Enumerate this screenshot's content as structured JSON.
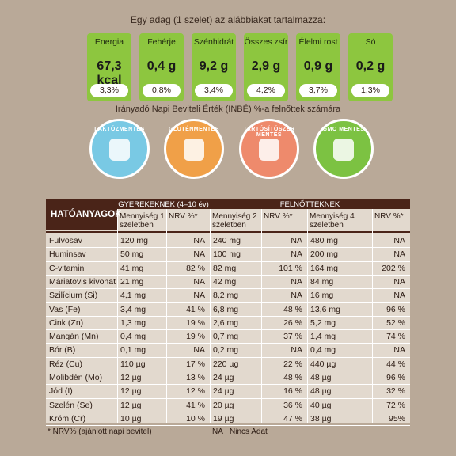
{
  "intro": "Egy adag (1 szelet) az alábbiakat tartalmazza:",
  "nutrition": [
    {
      "label": "Energia",
      "value": "67,3 kcal",
      "percent": "3,3%"
    },
    {
      "label": "Fehérje",
      "value": "0,4 g",
      "percent": "0,8%"
    },
    {
      "label": "Szénhidrát",
      "value": "9,2 g",
      "percent": "3,4%"
    },
    {
      "label": "Összes zsír",
      "value": "2,9 g",
      "percent": "4,2%"
    },
    {
      "label": "Élelmi rost",
      "value": "0,9 g",
      "percent": "3,7%"
    },
    {
      "label": "Só",
      "value": "0,2 g",
      "percent": "1,3%"
    }
  ],
  "note": "Irányadó Napi Beviteli Érték (INBÉ) %-a felnőttek számára",
  "badges": [
    "LAKTÓZMENTES",
    "GLUTÉNMENTES",
    "TARTÓSÍTÓSZER MENTES",
    "GMO MENTES"
  ],
  "table": {
    "title": "HATÓANYAGOK",
    "groups": [
      "GYEREKEKNEK (4–10 év)",
      "FELNŐTTEKNEK"
    ],
    "columns": [
      "Mennyiség 1 szeletben",
      "NRV %*",
      "Mennyiség 2 szeletben",
      "NRV %*",
      "Mennyiség 4 szeletben",
      "NRV %*"
    ],
    "rows": [
      [
        "Fulvosav",
        "120 mg",
        "NA",
        "240 mg",
        "NA",
        "480 mg",
        "NA"
      ],
      [
        "Huminsav",
        "50 mg",
        "NA",
        "100 mg",
        "NA",
        "200 mg",
        "NA"
      ],
      [
        "C-vitamin",
        "41 mg",
        "82 %",
        "82 mg",
        "101 %",
        "164 mg",
        "202 %"
      ],
      [
        "Máriatövis kivonat",
        "21 mg",
        "NA",
        "42 mg",
        "NA",
        "84 mg",
        "NA"
      ],
      [
        "Szilícium (Si)",
        "4,1 mg",
        "NA",
        "8,2 mg",
        "NA",
        "16 mg",
        "NA"
      ],
      [
        "Vas (Fe)",
        "3,4 mg",
        "41 %",
        "6,8 mg",
        "48 %",
        "13,6 mg",
        "96 %"
      ],
      [
        "Cink (Zn)",
        "1,3 mg",
        "19 %",
        "2,6 mg",
        "26 %",
        "5,2 mg",
        "52 %"
      ],
      [
        "Mangán (Mn)",
        "0,4 mg",
        "19 %",
        "0,7 mg",
        "37 %",
        "1,4 mg",
        "74 %"
      ],
      [
        "Bór (B)",
        "0,1 mg",
        "NA",
        "0,2 mg",
        "NA",
        "0,4 mg",
        "NA"
      ],
      [
        "Réz (Cu)",
        "110 µg",
        "17 %",
        "220 µg",
        "22 %",
        "440 µg",
        "44 %"
      ],
      [
        "Molibdén (Mo)",
        "12 µg",
        "13 %",
        "24 µg",
        "48 %",
        "48 µg",
        "96 %"
      ],
      [
        "Jód (I)",
        "12 µg",
        "12 %",
        "24 µg",
        "16 %",
        "48 µg",
        "32 %"
      ],
      [
        "Szelén (Se)",
        "12 µg",
        "41 %",
        "20 µg",
        "36 %",
        "40 µg",
        "72 %"
      ],
      [
        "Króm (Cr)",
        "10 µg",
        "10 %",
        "19 µg",
        "47 %",
        "38 µg",
        "95%"
      ]
    ]
  },
  "footer": {
    "nrv": "* NRV% (ajánlott napi bevitel)",
    "na": "NA",
    "na_text": "Nincs Adat"
  }
}
